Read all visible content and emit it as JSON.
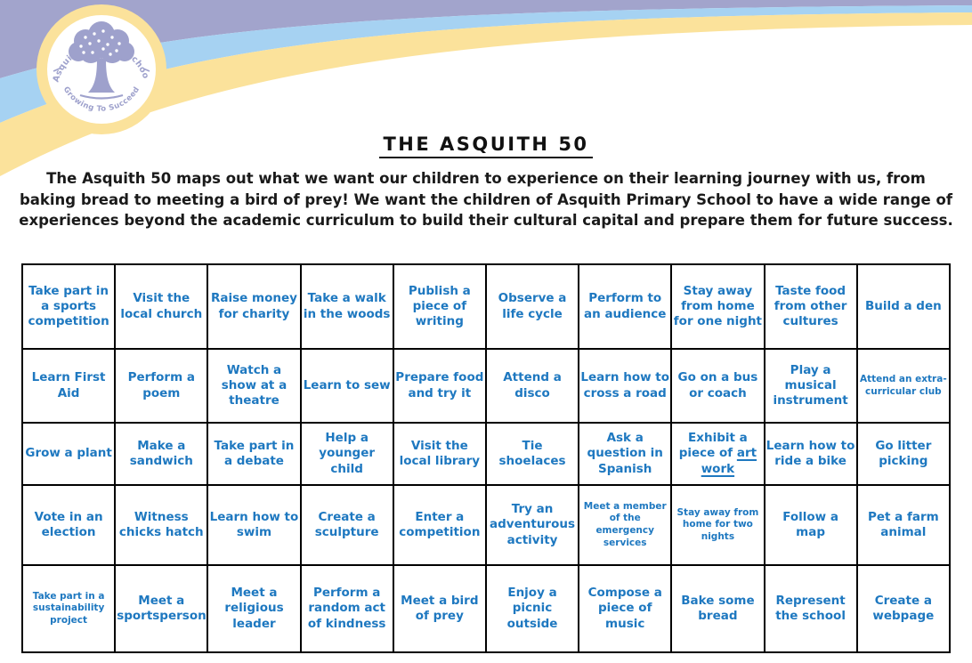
{
  "title": "THE ASQUITH 50",
  "intro": "The Asquith 50 maps out what we want our children to experience on their learning journey with us, from baking bread to meeting a bird of prey! We want the children of Asquith Primary School to have a wide range of experiences beyond the academic curriculum to build their cultural capital and prepare them for future success.",
  "header": {
    "logo": {
      "arc_top_text": "Asquith Primary School",
      "arc_bottom_text": "Growing To Succeed",
      "icon": "tree-icon"
    }
  },
  "colors": {
    "text_blue": "#1e78c0",
    "band_purple": "#a2a4cc",
    "band_blue": "#a6d2f2",
    "band_yellow": "#fbe29b",
    "logo_ink": "#9ea1cc"
  },
  "table": {
    "rows": [
      [
        {
          "text": "Take part in a sports competition"
        },
        {
          "text": "Visit the local church"
        },
        {
          "text": "Raise money for charity"
        },
        {
          "text": "Take a walk in the woods"
        },
        {
          "text": "Publish a piece of writing"
        },
        {
          "text": "Observe a life cycle"
        },
        {
          "text": "Perform to an audience"
        },
        {
          "text": "Stay away from home for one night"
        },
        {
          "text": "Taste food from other cultures"
        },
        {
          "text": "Build a den"
        }
      ],
      [
        {
          "text": "Learn First Aid"
        },
        {
          "text": "Perform a poem"
        },
        {
          "text": "Watch a show at a theatre"
        },
        {
          "text": "Learn to sew"
        },
        {
          "text": "Prepare food and try it"
        },
        {
          "text": "Attend a disco"
        },
        {
          "text": "Learn how to cross a road"
        },
        {
          "text": "Go on a bus or coach"
        },
        {
          "text": "Play a musical instrument"
        },
        {
          "text": "Attend an extra-curricular club",
          "small": true
        }
      ],
      [
        {
          "text": "Grow a plant"
        },
        {
          "text": "Make a sandwich"
        },
        {
          "text": "Take part in a debate"
        },
        {
          "text": "Help a younger child"
        },
        {
          "text": "Visit the local library"
        },
        {
          "text": "Tie shoelaces"
        },
        {
          "text": "Ask a question in Spanish"
        },
        {
          "text": "Exhibit a piece of art work",
          "underline": "art work"
        },
        {
          "text": "Learn how to ride a bike"
        },
        {
          "text": "Go litter picking"
        }
      ],
      [
        {
          "text": "Vote in an election"
        },
        {
          "text": "Witness chicks hatch"
        },
        {
          "text": "Learn how to swim"
        },
        {
          "text": "Create a sculpture"
        },
        {
          "text": "Enter a competition"
        },
        {
          "text": "Try an adventurous activity"
        },
        {
          "text": "Meet a member of the emergency services",
          "small": true
        },
        {
          "text": "Stay away from home for two nights",
          "small": true
        },
        {
          "text": "Follow a map"
        },
        {
          "text": "Pet a farm animal"
        }
      ],
      [
        {
          "text": "Take part in a sustainability project",
          "small": true
        },
        {
          "text": "Meet a sportsperson"
        },
        {
          "text": "Meet a religious leader"
        },
        {
          "text": "Perform a random act of kindness"
        },
        {
          "text": "Meet a bird of prey"
        },
        {
          "text": "Enjoy a picnic outside"
        },
        {
          "text": "Compose a piece of music"
        },
        {
          "text": "Bake some bread"
        },
        {
          "text": "Represent the school"
        },
        {
          "text": "Create a webpage"
        }
      ]
    ]
  }
}
